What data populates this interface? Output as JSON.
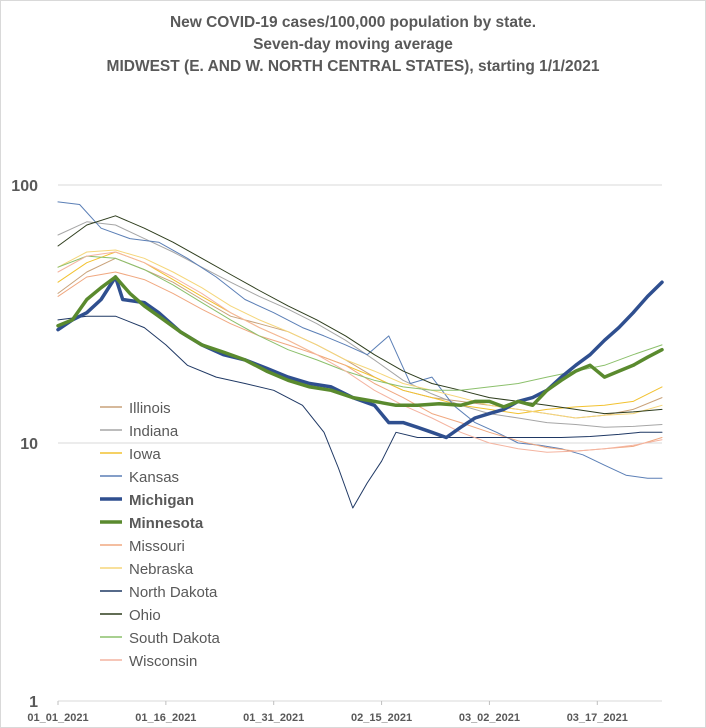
{
  "chart_data": {
    "type": "line",
    "title": "New COVID-19 cases/100,000 population by state.",
    "subtitle": "Seven-day moving average",
    "subtitle2": "MIDWEST (E. AND W. NORTH CENTRAL STATES), starting 1/1/2021",
    "xlabel": "",
    "ylabel": "",
    "y_scale": "log",
    "ylim": [
      1,
      100
    ],
    "y_ticks": [
      "1",
      "10",
      "100"
    ],
    "x_ticks": [
      "01_01_2021",
      "01_16_2021",
      "01_31_2021",
      "02_15_2021",
      "03_02_2021",
      "03_17_2021"
    ],
    "x_range_days": [
      0,
      84
    ],
    "grid": "horizontal",
    "legend_placement": "left-center",
    "series": [
      {
        "name": "Illinois",
        "color": "#c9a27a",
        "width": 1,
        "bold": false,
        "points": [
          [
            0,
            38
          ],
          [
            4,
            46
          ],
          [
            8,
            52
          ],
          [
            12,
            47
          ],
          [
            16,
            42
          ],
          [
            20,
            36
          ],
          [
            24,
            31
          ],
          [
            28,
            29
          ],
          [
            32,
            27
          ],
          [
            36,
            24
          ],
          [
            40,
            21
          ],
          [
            44,
            18
          ],
          [
            48,
            16
          ],
          [
            52,
            15
          ],
          [
            56,
            14.5
          ],
          [
            60,
            14
          ],
          [
            64,
            13.5
          ],
          [
            68,
            13
          ],
          [
            72,
            12.5
          ],
          [
            76,
            12.8
          ],
          [
            80,
            13.5
          ],
          [
            84,
            15
          ]
        ]
      },
      {
        "name": "Indiana",
        "color": "#a6a6a6",
        "width": 1,
        "bold": false,
        "points": [
          [
            0,
            64
          ],
          [
            4,
            72
          ],
          [
            8,
            70
          ],
          [
            12,
            62
          ],
          [
            16,
            55
          ],
          [
            20,
            48
          ],
          [
            24,
            42
          ],
          [
            28,
            37
          ],
          [
            32,
            33
          ],
          [
            36,
            29
          ],
          [
            40,
            25
          ],
          [
            44,
            21
          ],
          [
            48,
            17.5
          ],
          [
            52,
            15.5
          ],
          [
            56,
            14
          ],
          [
            60,
            13
          ],
          [
            64,
            12.5
          ],
          [
            68,
            12
          ],
          [
            72,
            11.8
          ],
          [
            76,
            11.5
          ],
          [
            80,
            11.6
          ],
          [
            84,
            11.8
          ]
        ]
      },
      {
        "name": "Iowa",
        "color": "#f2c230",
        "width": 1,
        "bold": false,
        "points": [
          [
            0,
            42
          ],
          [
            4,
            50
          ],
          [
            8,
            55
          ],
          [
            12,
            50
          ],
          [
            16,
            43
          ],
          [
            20,
            37
          ],
          [
            24,
            32
          ],
          [
            28,
            28
          ],
          [
            32,
            25
          ],
          [
            36,
            22
          ],
          [
            40,
            20
          ],
          [
            44,
            18
          ],
          [
            48,
            16
          ],
          [
            52,
            15
          ],
          [
            56,
            14
          ],
          [
            60,
            13.5
          ],
          [
            64,
            13
          ],
          [
            68,
            13.5
          ],
          [
            72,
            13.8
          ],
          [
            76,
            14
          ],
          [
            80,
            14.5
          ],
          [
            84,
            16.5
          ]
        ]
      },
      {
        "name": "Kansas",
        "color": "#5b7fb6",
        "width": 1,
        "bold": false,
        "points": [
          [
            0,
            86
          ],
          [
            3,
            84
          ],
          [
            6,
            68
          ],
          [
            10,
            62
          ],
          [
            14,
            60
          ],
          [
            18,
            52
          ],
          [
            22,
            44
          ],
          [
            26,
            36
          ],
          [
            30,
            32
          ],
          [
            34,
            28
          ],
          [
            37,
            26
          ],
          [
            40,
            24
          ],
          [
            43,
            22
          ],
          [
            46,
            26
          ],
          [
            49,
            17
          ],
          [
            52,
            18
          ],
          [
            55,
            14
          ],
          [
            58,
            12
          ],
          [
            61,
            11
          ],
          [
            64,
            10
          ],
          [
            67,
            9.8
          ],
          [
            70,
            9.5
          ],
          [
            73,
            9
          ],
          [
            76,
            8.2
          ],
          [
            79,
            7.5
          ],
          [
            82,
            7.3
          ],
          [
            84,
            7.3
          ]
        ]
      },
      {
        "name": "Michigan",
        "color": "#2f4f8f",
        "width": 3.5,
        "bold": true,
        "points": [
          [
            0,
            27.5
          ],
          [
            2,
            30
          ],
          [
            4,
            32
          ],
          [
            6,
            36
          ],
          [
            8,
            44
          ],
          [
            9,
            36
          ],
          [
            12,
            35
          ],
          [
            14,
            32
          ],
          [
            17,
            27
          ],
          [
            20,
            24
          ],
          [
            23,
            22
          ],
          [
            26,
            21
          ],
          [
            29,
            19.5
          ],
          [
            32,
            18
          ],
          [
            35,
            17
          ],
          [
            38,
            16.5
          ],
          [
            41,
            15
          ],
          [
            44,
            14
          ],
          [
            46,
            12
          ],
          [
            48,
            12
          ],
          [
            50,
            11.5
          ],
          [
            52,
            11
          ],
          [
            54,
            10.5
          ],
          [
            56,
            11.5
          ],
          [
            58,
            12.5
          ],
          [
            60,
            13
          ],
          [
            62,
            13.5
          ],
          [
            64,
            14.5
          ],
          [
            66,
            15
          ],
          [
            68,
            16
          ],
          [
            70,
            18
          ],
          [
            72,
            20
          ],
          [
            74,
            22
          ],
          [
            76,
            25
          ],
          [
            78,
            28
          ],
          [
            80,
            32
          ],
          [
            82,
            37
          ],
          [
            84,
            42
          ]
        ]
      },
      {
        "name": "Minnesota",
        "color": "#5a8a2e",
        "width": 3.5,
        "bold": true,
        "points": [
          [
            0,
            28.5
          ],
          [
            2,
            30
          ],
          [
            4,
            36
          ],
          [
            6,
            40
          ],
          [
            8,
            44
          ],
          [
            10,
            38
          ],
          [
            12,
            34
          ],
          [
            14,
            31
          ],
          [
            17,
            27
          ],
          [
            20,
            24
          ],
          [
            23,
            22.5
          ],
          [
            26,
            21
          ],
          [
            29,
            19
          ],
          [
            32,
            17.5
          ],
          [
            35,
            16.5
          ],
          [
            38,
            16
          ],
          [
            41,
            15
          ],
          [
            44,
            14.5
          ],
          [
            47,
            14
          ],
          [
            50,
            14
          ],
          [
            53,
            14.2
          ],
          [
            56,
            14
          ],
          [
            58,
            14.5
          ],
          [
            60,
            14.5
          ],
          [
            62,
            13.8
          ],
          [
            64,
            14.5
          ],
          [
            66,
            14
          ],
          [
            68,
            16
          ],
          [
            70,
            17.5
          ],
          [
            72,
            19
          ],
          [
            74,
            20
          ],
          [
            76,
            18
          ],
          [
            78,
            19
          ],
          [
            80,
            20
          ],
          [
            82,
            21.5
          ],
          [
            84,
            23
          ]
        ]
      },
      {
        "name": "Missouri",
        "color": "#f0a880",
        "width": 1,
        "bold": false,
        "points": [
          [
            0,
            37
          ],
          [
            4,
            44
          ],
          [
            8,
            46
          ],
          [
            12,
            43
          ],
          [
            16,
            38
          ],
          [
            20,
            33
          ],
          [
            24,
            29
          ],
          [
            28,
            26
          ],
          [
            32,
            24
          ],
          [
            36,
            22
          ],
          [
            40,
            20
          ],
          [
            44,
            17
          ],
          [
            48,
            15
          ],
          [
            52,
            13
          ],
          [
            56,
            12
          ],
          [
            60,
            11
          ],
          [
            64,
            10.2
          ],
          [
            68,
            9.6
          ],
          [
            72,
            9.3
          ],
          [
            76,
            9.5
          ],
          [
            80,
            9.7
          ],
          [
            84,
            10.5
          ]
        ]
      },
      {
        "name": "Nebraska",
        "color": "#f5d67a",
        "width": 1,
        "bold": false,
        "points": [
          [
            0,
            48
          ],
          [
            4,
            55
          ],
          [
            8,
            56
          ],
          [
            12,
            52
          ],
          [
            16,
            46
          ],
          [
            20,
            40
          ],
          [
            24,
            34
          ],
          [
            28,
            30
          ],
          [
            32,
            27
          ],
          [
            36,
            24
          ],
          [
            40,
            21
          ],
          [
            44,
            19
          ],
          [
            48,
            17
          ],
          [
            52,
            16
          ],
          [
            56,
            15
          ],
          [
            60,
            14
          ],
          [
            64,
            13.5
          ],
          [
            68,
            13
          ],
          [
            72,
            12.5
          ],
          [
            76,
            12.8
          ],
          [
            80,
            13
          ],
          [
            84,
            14
          ]
        ]
      },
      {
        "name": "North Dakota",
        "color": "#1f3864",
        "width": 1,
        "bold": false,
        "points": [
          [
            0,
            30
          ],
          [
            4,
            31
          ],
          [
            8,
            31
          ],
          [
            12,
            28
          ],
          [
            15,
            24
          ],
          [
            18,
            20
          ],
          [
            22,
            18
          ],
          [
            26,
            17
          ],
          [
            30,
            16
          ],
          [
            34,
            14
          ],
          [
            37,
            11
          ],
          [
            39,
            8
          ],
          [
            41,
            5.6
          ],
          [
            43,
            7
          ],
          [
            45,
            8.5
          ],
          [
            47,
            11
          ],
          [
            50,
            10.5
          ],
          [
            54,
            10.5
          ],
          [
            58,
            10.5
          ],
          [
            62,
            10.5
          ],
          [
            66,
            10.5
          ],
          [
            70,
            10.5
          ],
          [
            74,
            10.6
          ],
          [
            78,
            10.8
          ],
          [
            81,
            11
          ],
          [
            84,
            11
          ]
        ]
      },
      {
        "name": "Ohio",
        "color": "#2e3d1d",
        "width": 1,
        "bold": false,
        "points": [
          [
            0,
            58
          ],
          [
            4,
            70
          ],
          [
            8,
            76
          ],
          [
            12,
            68
          ],
          [
            16,
            60
          ],
          [
            20,
            52
          ],
          [
            24,
            45
          ],
          [
            28,
            39
          ],
          [
            32,
            34
          ],
          [
            36,
            30
          ],
          [
            40,
            26
          ],
          [
            44,
            22
          ],
          [
            48,
            19
          ],
          [
            52,
            17
          ],
          [
            56,
            16
          ],
          [
            60,
            15
          ],
          [
            64,
            14.5
          ],
          [
            68,
            14
          ],
          [
            72,
            13.5
          ],
          [
            76,
            13
          ],
          [
            80,
            13.2
          ],
          [
            84,
            13.5
          ]
        ]
      },
      {
        "name": "South Dakota",
        "color": "#8cc06c",
        "width": 1,
        "bold": false,
        "points": [
          [
            0,
            48
          ],
          [
            4,
            53
          ],
          [
            8,
            52
          ],
          [
            12,
            47
          ],
          [
            16,
            41
          ],
          [
            20,
            35
          ],
          [
            24,
            30
          ],
          [
            28,
            26
          ],
          [
            32,
            23
          ],
          [
            36,
            21
          ],
          [
            40,
            19
          ],
          [
            44,
            17.5
          ],
          [
            48,
            16.5
          ],
          [
            52,
            16
          ],
          [
            56,
            16
          ],
          [
            60,
            16.5
          ],
          [
            64,
            17
          ],
          [
            68,
            18
          ],
          [
            72,
            19
          ],
          [
            76,
            20
          ],
          [
            80,
            22
          ],
          [
            84,
            24
          ]
        ]
      },
      {
        "name": "Wisconsin",
        "color": "#f4b4a0",
        "width": 1,
        "bold": false,
        "points": [
          [
            0,
            46
          ],
          [
            4,
            53
          ],
          [
            8,
            55
          ],
          [
            12,
            50
          ],
          [
            16,
            44
          ],
          [
            20,
            38
          ],
          [
            24,
            32
          ],
          [
            28,
            28
          ],
          [
            32,
            25
          ],
          [
            36,
            22
          ],
          [
            40,
            19
          ],
          [
            44,
            16
          ],
          [
            48,
            14
          ],
          [
            52,
            12.5
          ],
          [
            56,
            11
          ],
          [
            60,
            10
          ],
          [
            64,
            9.5
          ],
          [
            68,
            9.2
          ],
          [
            72,
            9.3
          ],
          [
            76,
            9.5
          ],
          [
            80,
            9.8
          ],
          [
            84,
            10.3
          ]
        ]
      }
    ]
  }
}
